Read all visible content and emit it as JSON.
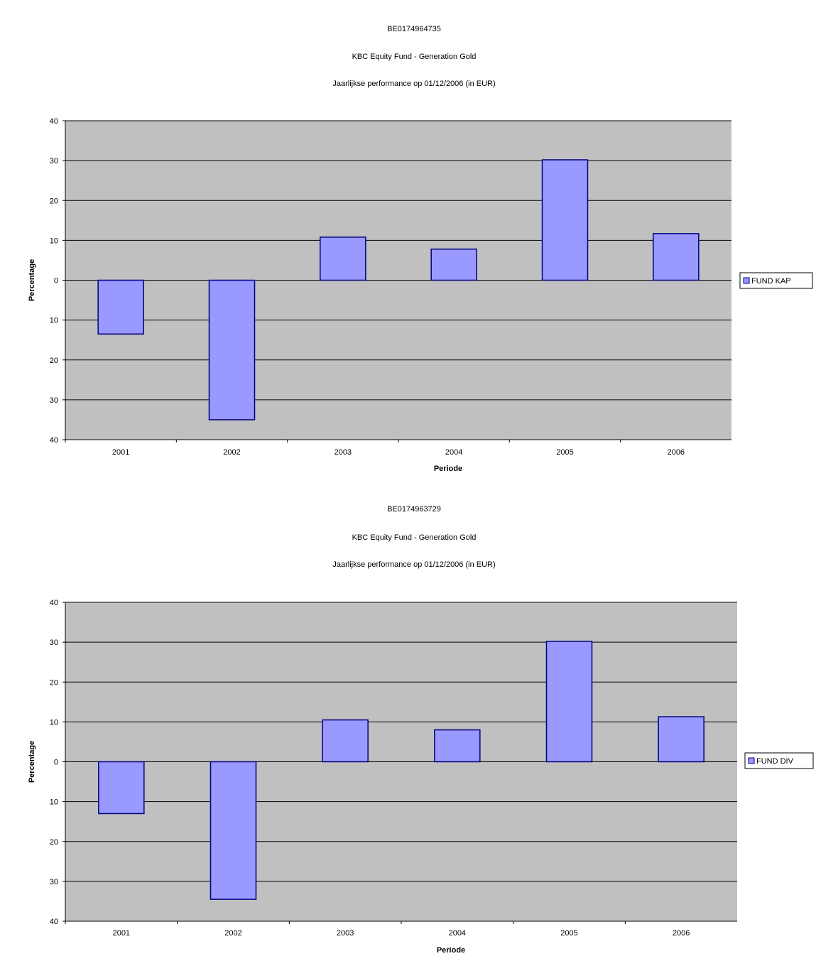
{
  "chart_data": [
    {
      "type": "bar",
      "title_lines": [
        "BE0174964735",
        "KBC Equity Fund - Generation Gold",
        "Jaarlijkse performance op 01/12/2006 (in EUR)"
      ],
      "categories": [
        "2001",
        "2002",
        "2003",
        "2004",
        "2005",
        "2006"
      ],
      "series": [
        {
          "name": "FUND KAP",
          "values": [
            -13.5,
            -35,
            10.8,
            7.8,
            30.2,
            11.7
          ]
        }
      ],
      "xlabel": "Periode",
      "ylabel": "Percentage",
      "ylim": [
        -40,
        40
      ],
      "yticks": [
        40,
        30,
        20,
        10,
        0,
        -10,
        -20,
        -30,
        -40
      ],
      "ytick_labels": [
        "40",
        "30",
        "20",
        "10",
        "0",
        "10",
        "20",
        "30",
        "40"
      ],
      "grid": true,
      "legend_position": "right",
      "colors": {
        "bar_fill": "#9999ff",
        "bar_stroke": "#000080",
        "plot_background": "#c0c0c0",
        "gridline": "#000000"
      }
    },
    {
      "type": "bar",
      "title_lines": [
        "BE0174963729",
        "KBC Equity Fund - Generation Gold",
        "Jaarlijkse performance op 01/12/2006 (in EUR)"
      ],
      "categories": [
        "2001",
        "2002",
        "2003",
        "2004",
        "2005",
        "2006"
      ],
      "series": [
        {
          "name": "FUND DIV",
          "values": [
            -13,
            -34.5,
            10.5,
            8,
            30.2,
            11.3
          ]
        }
      ],
      "xlabel": "Periode",
      "ylabel": "Percentage",
      "ylim": [
        -40,
        40
      ],
      "yticks": [
        40,
        30,
        20,
        10,
        0,
        -10,
        -20,
        -30,
        -40
      ],
      "ytick_labels": [
        "40",
        "30",
        "20",
        "10",
        "0",
        "10",
        "20",
        "30",
        "40"
      ],
      "grid": true,
      "legend_position": "right",
      "colors": {
        "bar_fill": "#9999ff",
        "bar_stroke": "#000080",
        "plot_background": "#c0c0c0",
        "gridline": "#000000"
      }
    }
  ]
}
